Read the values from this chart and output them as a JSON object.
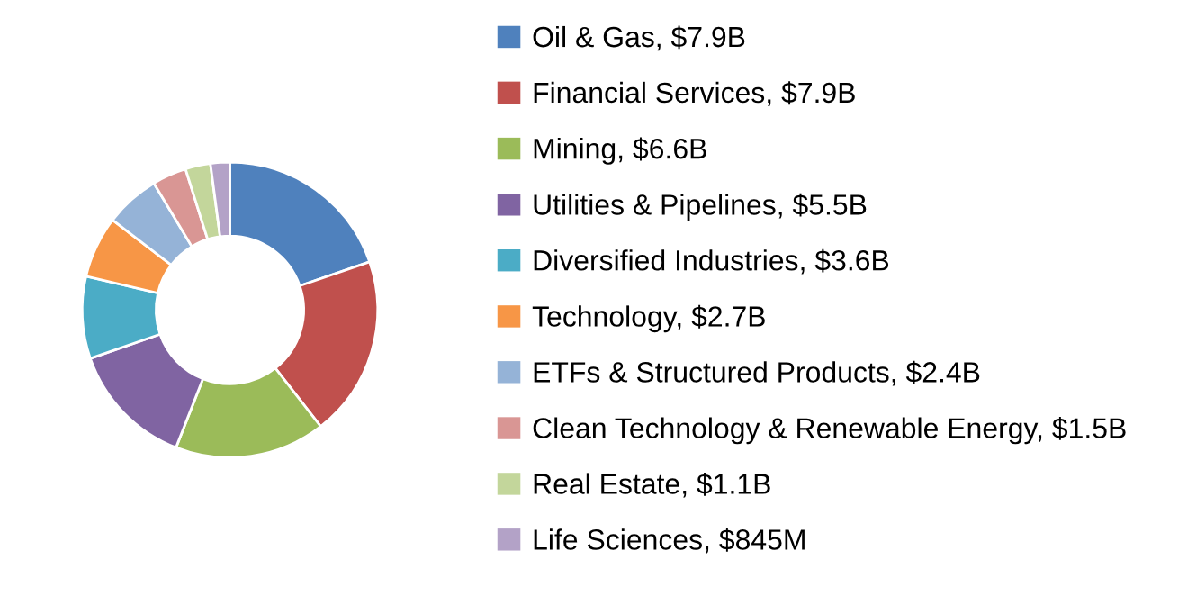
{
  "chart_data": {
    "type": "donut",
    "categories": [
      "Oil & Gas, $7.9B",
      "Financial Services, $7.9B",
      "Mining, $6.6B",
      "Utilities & Pipelines, $5.5B",
      "Diversified Industries, $3.6B",
      "Technology, $2.7B",
      "ETFs & Structured Products, $2.4B",
      "Clean Technology & Renewable Energy, $1.5B",
      "Real Estate, $1.1B",
      "Life Sciences, $845M"
    ],
    "values": [
      7.9,
      7.9,
      6.6,
      5.5,
      3.6,
      2.7,
      2.4,
      1.5,
      1.1,
      0.845
    ],
    "colors": [
      "#4f81bd",
      "#c0504d",
      "#9bbb59",
      "#8064a2",
      "#4bacc6",
      "#f79646",
      "#95b3d7",
      "#d99694",
      "#c3d69b",
      "#b3a2c7"
    ],
    "legend": "right"
  }
}
